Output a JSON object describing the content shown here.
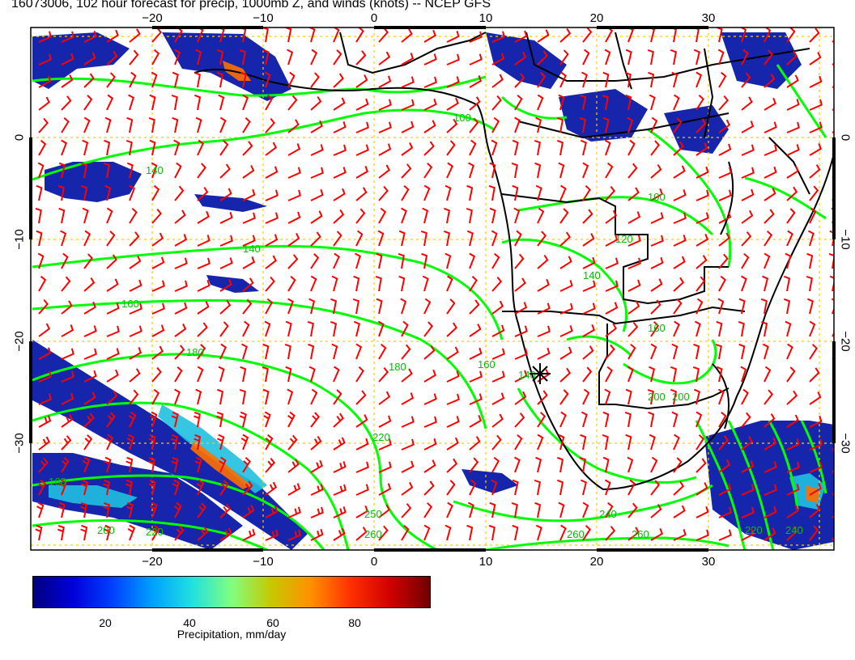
{
  "title": "16073006, 102 hour forecast for precip, 1000mb Z, and winds (knots) -- NCEP GFS",
  "map": {
    "lon_ticks_top": [
      "−20",
      "−10",
      "0",
      "10",
      "20",
      "30"
    ],
    "lon_ticks_bottom": [
      "−20",
      "−10",
      "0",
      "10",
      "20",
      "30"
    ],
    "lat_ticks_left": [
      "0",
      "−10",
      "−20",
      "−30"
    ],
    "lat_ticks_right": [
      "0",
      "−10",
      "−20",
      "−30"
    ],
    "lon_range": [
      -31,
      41
    ],
    "lat_range": [
      -40,
      10
    ],
    "contour_labels": [
      "100",
      "120",
      "140",
      "160",
      "180",
      "200",
      "220",
      "240",
      "260"
    ],
    "colors": {
      "contour": "#00ff00",
      "wind_barb": "#ff0000",
      "coastline": "#000000",
      "grid": "#ffcc00"
    },
    "marker": "station-star"
  },
  "colorbar": {
    "ticks": [
      "20",
      "40",
      "60",
      "80"
    ],
    "label": "Precipitation, mm/day",
    "range": [
      0,
      100
    ]
  }
}
